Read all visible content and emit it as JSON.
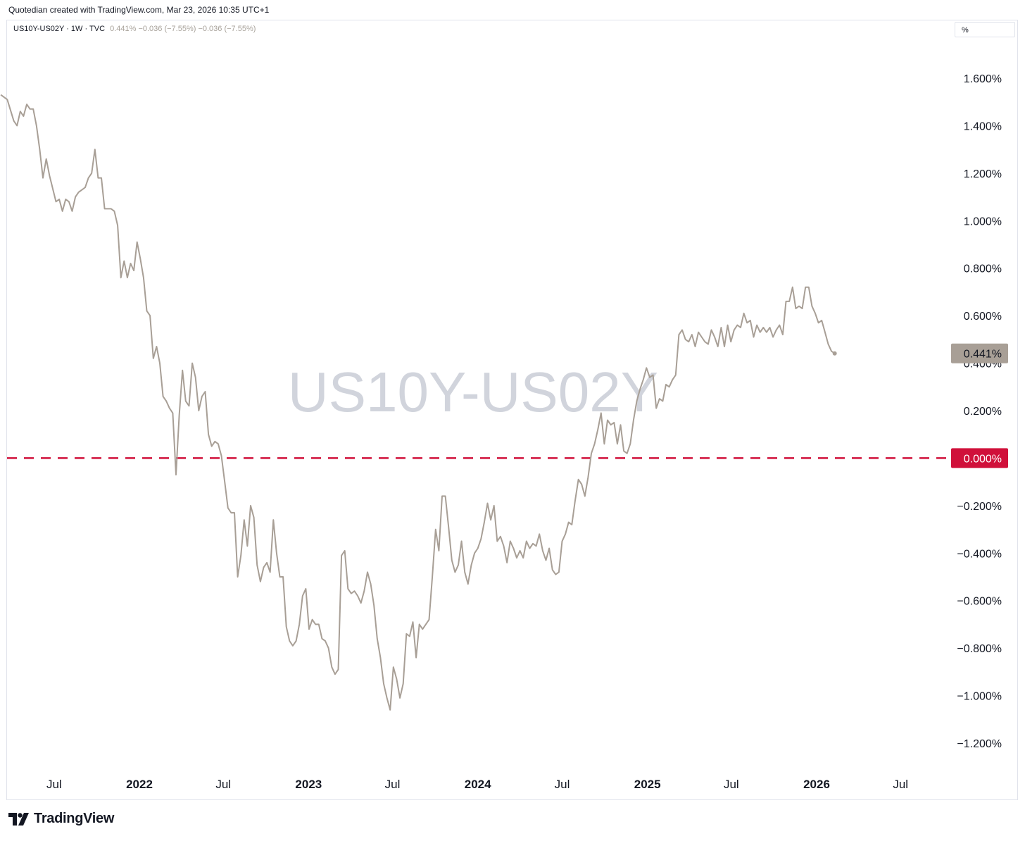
{
  "header": {
    "caption": "Quotedian created with TradingView.com, Mar 23, 2026 10:35 UTC+1"
  },
  "legend": {
    "symbol": "US10Y-US02Y · 1W · TVC",
    "values": "0.441%  −0.036 (−7.55%)  −0.036 (−7.55%)"
  },
  "unit_box": {
    "label": "%"
  },
  "watermark": "US10Y-US02Y",
  "footer": {
    "brand": "TradingView",
    "logo_icon": "tradingview-logo-icon"
  },
  "colors": {
    "line": "#a89f96",
    "zero_line": "#d0103a",
    "last_badge": "#a89f96",
    "watermark": "#d1d4dc"
  },
  "chart_data": {
    "type": "line",
    "title": "US10Y-US02Y",
    "xlabel": "",
    "ylabel": "",
    "x_ticks": [
      "Jul",
      "2022",
      "Jul",
      "2023",
      "Jul",
      "2024",
      "Jul",
      "2025",
      "Jul",
      "2026",
      "Jul"
    ],
    "x_tick_dates": [
      "2021-07-01",
      "2022-01-01",
      "2022-07-01",
      "2023-01-01",
      "2023-07-01",
      "2024-01-01",
      "2024-07-01",
      "2025-01-01",
      "2025-07-01",
      "2026-01-01",
      "2026-07-01"
    ],
    "y_ticks": [
      "1.600%",
      "1.400%",
      "1.200%",
      "1.000%",
      "0.800%",
      "0.600%",
      "0.400%",
      "0.200%",
      "0.000%",
      "−0.200%",
      "−0.400%",
      "−0.600%",
      "−0.800%",
      "−1.000%",
      "−1.200%"
    ],
    "ylim": [
      -1.3,
      1.75
    ],
    "xlim": [
      "2021-02-22",
      "2026-10-12"
    ],
    "last_value_label": "0.441%",
    "reference_line": {
      "value": 0.0,
      "label": "0.000%",
      "style": "dashed"
    },
    "grid": false,
    "series": [
      {
        "name": "US10Y-US02Y",
        "points": [
          [
            "2021-03-08",
            1.53
          ],
          [
            "2021-03-22",
            1.51
          ],
          [
            "2021-04-05",
            1.42
          ],
          [
            "2021-04-12",
            1.4
          ],
          [
            "2021-04-19",
            1.46
          ],
          [
            "2021-04-26",
            1.44
          ],
          [
            "2021-05-03",
            1.49
          ],
          [
            "2021-05-10",
            1.47
          ],
          [
            "2021-05-17",
            1.47
          ],
          [
            "2021-05-24",
            1.4
          ],
          [
            "2021-05-31",
            1.3
          ],
          [
            "2021-06-07",
            1.18
          ],
          [
            "2021-06-14",
            1.26
          ],
          [
            "2021-06-21",
            1.19
          ],
          [
            "2021-07-05",
            1.08
          ],
          [
            "2021-07-12",
            1.09
          ],
          [
            "2021-07-19",
            1.04
          ],
          [
            "2021-07-26",
            1.09
          ],
          [
            "2021-08-02",
            1.08
          ],
          [
            "2021-08-09",
            1.04
          ],
          [
            "2021-08-16",
            1.1
          ],
          [
            "2021-08-23",
            1.12
          ],
          [
            "2021-08-30",
            1.13
          ],
          [
            "2021-09-06",
            1.14
          ],
          [
            "2021-09-13",
            1.18
          ],
          [
            "2021-09-20",
            1.2
          ],
          [
            "2021-09-27",
            1.3
          ],
          [
            "2021-10-04",
            1.18
          ],
          [
            "2021-10-11",
            1.18
          ],
          [
            "2021-10-18",
            1.05
          ],
          [
            "2021-10-25",
            1.05
          ],
          [
            "2021-11-01",
            1.05
          ],
          [
            "2021-11-08",
            1.04
          ],
          [
            "2021-11-15",
            0.98
          ],
          [
            "2021-11-22",
            0.76
          ],
          [
            "2021-11-29",
            0.83
          ],
          [
            "2021-12-06",
            0.76
          ],
          [
            "2021-12-13",
            0.82
          ],
          [
            "2021-12-20",
            0.79
          ],
          [
            "2021-12-27",
            0.91
          ],
          [
            "2022-01-03",
            0.84
          ],
          [
            "2022-01-10",
            0.76
          ],
          [
            "2022-01-17",
            0.62
          ],
          [
            "2022-01-24",
            0.6
          ],
          [
            "2022-01-31",
            0.42
          ],
          [
            "2022-02-07",
            0.47
          ],
          [
            "2022-02-14",
            0.4
          ],
          [
            "2022-02-21",
            0.26
          ],
          [
            "2022-02-28",
            0.24
          ],
          [
            "2022-03-07",
            0.21
          ],
          [
            "2022-03-14",
            0.19
          ],
          [
            "2022-03-21",
            -0.07
          ],
          [
            "2022-03-28",
            0.18
          ],
          [
            "2022-04-04",
            0.37
          ],
          [
            "2022-04-11",
            0.24
          ],
          [
            "2022-04-18",
            0.22
          ],
          [
            "2022-04-25",
            0.4
          ],
          [
            "2022-05-02",
            0.34
          ],
          [
            "2022-05-09",
            0.2
          ],
          [
            "2022-05-16",
            0.26
          ],
          [
            "2022-05-23",
            0.28
          ],
          [
            "2022-05-30",
            0.1
          ],
          [
            "2022-06-06",
            0.05
          ],
          [
            "2022-06-13",
            0.07
          ],
          [
            "2022-06-20",
            0.06
          ],
          [
            "2022-06-27",
            0.01
          ],
          [
            "2022-07-04",
            -0.1
          ],
          [
            "2022-07-11",
            -0.21
          ],
          [
            "2022-07-18",
            -0.23
          ],
          [
            "2022-07-25",
            -0.23
          ],
          [
            "2022-08-01",
            -0.5
          ],
          [
            "2022-08-08",
            -0.41
          ],
          [
            "2022-08-15",
            -0.26
          ],
          [
            "2022-08-22",
            -0.37
          ],
          [
            "2022-08-29",
            -0.2
          ],
          [
            "2022-09-05",
            -0.25
          ],
          [
            "2022-09-12",
            -0.45
          ],
          [
            "2022-09-19",
            -0.52
          ],
          [
            "2022-09-26",
            -0.46
          ],
          [
            "2022-10-03",
            -0.44
          ],
          [
            "2022-10-10",
            -0.48
          ],
          [
            "2022-10-17",
            -0.26
          ],
          [
            "2022-10-24",
            -0.4
          ],
          [
            "2022-10-31",
            -0.5
          ],
          [
            "2022-11-07",
            -0.5
          ],
          [
            "2022-11-14",
            -0.71
          ],
          [
            "2022-11-21",
            -0.77
          ],
          [
            "2022-11-28",
            -0.79
          ],
          [
            "2022-12-05",
            -0.77
          ],
          [
            "2022-12-12",
            -0.7
          ],
          [
            "2022-12-19",
            -0.58
          ],
          [
            "2022-12-26",
            -0.55
          ],
          [
            "2023-01-02",
            -0.72
          ],
          [
            "2023-01-09",
            -0.68
          ],
          [
            "2023-01-16",
            -0.7
          ],
          [
            "2023-01-23",
            -0.7
          ],
          [
            "2023-01-30",
            -0.76
          ],
          [
            "2023-02-06",
            -0.77
          ],
          [
            "2023-02-13",
            -0.8
          ],
          [
            "2023-02-20",
            -0.88
          ],
          [
            "2023-02-27",
            -0.91
          ],
          [
            "2023-03-06",
            -0.89
          ],
          [
            "2023-03-13",
            -0.41
          ],
          [
            "2023-03-20",
            -0.39
          ],
          [
            "2023-03-27",
            -0.55
          ],
          [
            "2023-04-03",
            -0.57
          ],
          [
            "2023-04-10",
            -0.56
          ],
          [
            "2023-04-17",
            -0.58
          ],
          [
            "2023-04-24",
            -0.61
          ],
          [
            "2023-05-01",
            -0.56
          ],
          [
            "2023-05-08",
            -0.48
          ],
          [
            "2023-05-15",
            -0.53
          ],
          [
            "2023-05-22",
            -0.62
          ],
          [
            "2023-05-29",
            -0.76
          ],
          [
            "2023-06-05",
            -0.84
          ],
          [
            "2023-06-12",
            -0.95
          ],
          [
            "2023-06-19",
            -1.01
          ],
          [
            "2023-06-26",
            -1.06
          ],
          [
            "2023-07-03",
            -0.88
          ],
          [
            "2023-07-10",
            -0.93
          ],
          [
            "2023-07-17",
            -1.01
          ],
          [
            "2023-07-24",
            -0.95
          ],
          [
            "2023-07-31",
            -0.74
          ],
          [
            "2023-08-07",
            -0.75
          ],
          [
            "2023-08-14",
            -0.69
          ],
          [
            "2023-08-21",
            -0.84
          ],
          [
            "2023-08-28",
            -0.7
          ],
          [
            "2023-09-04",
            -0.72
          ],
          [
            "2023-09-11",
            -0.7
          ],
          [
            "2023-09-18",
            -0.68
          ],
          [
            "2023-09-25",
            -0.5
          ],
          [
            "2023-10-02",
            -0.3
          ],
          [
            "2023-10-09",
            -0.39
          ],
          [
            "2023-10-16",
            -0.16
          ],
          [
            "2023-10-23",
            -0.16
          ],
          [
            "2023-10-30",
            -0.29
          ],
          [
            "2023-11-06",
            -0.43
          ],
          [
            "2023-11-13",
            -0.48
          ],
          [
            "2023-11-20",
            -0.45
          ],
          [
            "2023-11-27",
            -0.35
          ],
          [
            "2023-12-04",
            -0.48
          ],
          [
            "2023-12-11",
            -0.53
          ],
          [
            "2023-12-18",
            -0.45
          ],
          [
            "2023-12-25",
            -0.4
          ],
          [
            "2024-01-01",
            -0.38
          ],
          [
            "2024-01-08",
            -0.34
          ],
          [
            "2024-01-15",
            -0.27
          ],
          [
            "2024-01-22",
            -0.19
          ],
          [
            "2024-01-29",
            -0.26
          ],
          [
            "2024-02-05",
            -0.2
          ],
          [
            "2024-02-12",
            -0.35
          ],
          [
            "2024-02-19",
            -0.33
          ],
          [
            "2024-02-26",
            -0.37
          ],
          [
            "2024-03-04",
            -0.44
          ],
          [
            "2024-03-11",
            -0.35
          ],
          [
            "2024-03-18",
            -0.38
          ],
          [
            "2024-03-25",
            -0.42
          ],
          [
            "2024-04-01",
            -0.39
          ],
          [
            "2024-04-08",
            -0.42
          ],
          [
            "2024-04-15",
            -0.35
          ],
          [
            "2024-04-22",
            -0.38
          ],
          [
            "2024-04-29",
            -0.36
          ],
          [
            "2024-05-06",
            -0.37
          ],
          [
            "2024-05-13",
            -0.32
          ],
          [
            "2024-05-20",
            -0.39
          ],
          [
            "2024-05-27",
            -0.43
          ],
          [
            "2024-06-03",
            -0.38
          ],
          [
            "2024-06-10",
            -0.47
          ],
          [
            "2024-06-17",
            -0.49
          ],
          [
            "2024-06-24",
            -0.48
          ],
          [
            "2024-07-01",
            -0.35
          ],
          [
            "2024-07-08",
            -0.32
          ],
          [
            "2024-07-15",
            -0.27
          ],
          [
            "2024-07-22",
            -0.28
          ],
          [
            "2024-07-29",
            -0.18
          ],
          [
            "2024-08-05",
            -0.09
          ],
          [
            "2024-08-12",
            -0.11
          ],
          [
            "2024-08-19",
            -0.16
          ],
          [
            "2024-08-26",
            -0.08
          ],
          [
            "2024-09-02",
            0.02
          ],
          [
            "2024-09-09",
            0.06
          ],
          [
            "2024-09-16",
            0.12
          ],
          [
            "2024-09-23",
            0.19
          ],
          [
            "2024-09-30",
            0.06
          ],
          [
            "2024-10-07",
            0.16
          ],
          [
            "2024-10-14",
            0.14
          ],
          [
            "2024-10-21",
            0.15
          ],
          [
            "2024-10-28",
            0.06
          ],
          [
            "2024-11-04",
            0.14
          ],
          [
            "2024-11-11",
            0.03
          ],
          [
            "2024-11-18",
            0.02
          ],
          [
            "2024-11-25",
            0.06
          ],
          [
            "2024-12-02",
            0.16
          ],
          [
            "2024-12-09",
            0.24
          ],
          [
            "2024-12-16",
            0.29
          ],
          [
            "2024-12-23",
            0.33
          ],
          [
            "2024-12-30",
            0.38
          ],
          [
            "2025-01-06",
            0.34
          ],
          [
            "2025-01-13",
            0.35
          ],
          [
            "2025-01-20",
            0.21
          ],
          [
            "2025-01-27",
            0.25
          ],
          [
            "2025-02-03",
            0.24
          ],
          [
            "2025-02-10",
            0.31
          ],
          [
            "2025-02-17",
            0.3
          ],
          [
            "2025-02-24",
            0.33
          ],
          [
            "2025-03-03",
            0.35
          ],
          [
            "2025-03-10",
            0.52
          ],
          [
            "2025-03-17",
            0.54
          ],
          [
            "2025-03-24",
            0.5
          ],
          [
            "2025-03-31",
            0.49
          ],
          [
            "2025-04-07",
            0.52
          ],
          [
            "2025-04-14",
            0.47
          ],
          [
            "2025-04-21",
            0.53
          ],
          [
            "2025-04-28",
            0.51
          ],
          [
            "2025-05-05",
            0.49
          ],
          [
            "2025-05-12",
            0.48
          ],
          [
            "2025-05-19",
            0.54
          ],
          [
            "2025-05-26",
            0.51
          ],
          [
            "2025-06-02",
            0.47
          ],
          [
            "2025-06-09",
            0.55
          ],
          [
            "2025-06-16",
            0.47
          ],
          [
            "2025-06-23",
            0.56
          ],
          [
            "2025-06-30",
            0.49
          ],
          [
            "2025-07-07",
            0.54
          ],
          [
            "2025-07-14",
            0.56
          ],
          [
            "2025-07-21",
            0.55
          ],
          [
            "2025-07-28",
            0.61
          ],
          [
            "2025-08-04",
            0.57
          ],
          [
            "2025-08-11",
            0.58
          ],
          [
            "2025-08-18",
            0.51
          ],
          [
            "2025-08-25",
            0.56
          ],
          [
            "2025-09-01",
            0.53
          ],
          [
            "2025-09-08",
            0.55
          ],
          [
            "2025-09-15",
            0.53
          ],
          [
            "2025-09-22",
            0.55
          ],
          [
            "2025-09-29",
            0.51
          ],
          [
            "2025-10-06",
            0.54
          ],
          [
            "2025-10-13",
            0.56
          ],
          [
            "2025-10-20",
            0.52
          ],
          [
            "2025-10-27",
            0.66
          ],
          [
            "2025-11-03",
            0.66
          ],
          [
            "2025-11-10",
            0.72
          ],
          [
            "2025-11-17",
            0.63
          ],
          [
            "2025-11-24",
            0.64
          ],
          [
            "2025-12-01",
            0.63
          ],
          [
            "2025-12-08",
            0.72
          ],
          [
            "2025-12-15",
            0.72
          ],
          [
            "2025-12-22",
            0.64
          ],
          [
            "2025-12-29",
            0.61
          ],
          [
            "2026-01-05",
            0.57
          ],
          [
            "2026-01-12",
            0.58
          ],
          [
            "2026-01-19",
            0.53
          ],
          [
            "2026-01-26",
            0.48
          ],
          [
            "2026-02-02",
            0.45
          ],
          [
            "2026-02-09",
            0.441
          ]
        ]
      }
    ]
  }
}
